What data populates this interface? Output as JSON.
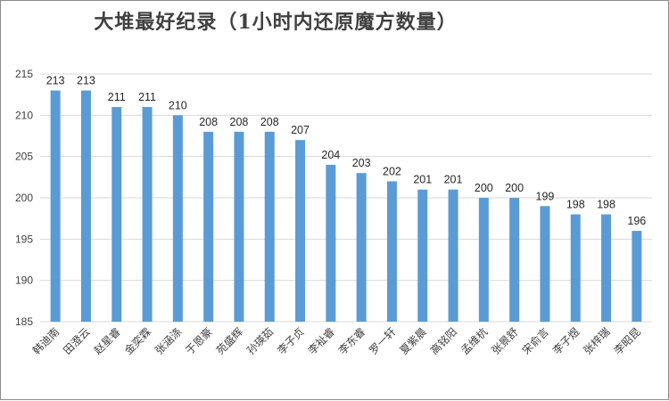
{
  "chart_data": {
    "type": "bar",
    "title": "大堆最好纪录（1小时内还原魔方数量）",
    "xlabel": "",
    "ylabel": "",
    "ylim": [
      185,
      215
    ],
    "yticks": [
      185,
      190,
      195,
      200,
      205,
      210,
      215
    ],
    "grid": true,
    "legend": "none",
    "bar_color": "#5b9bd5",
    "categories": [
      "韩迪南",
      "田澄云",
      "赵星睿",
      "金奕霖",
      "张涵涤",
      "于恩豪",
      "苑盛辉",
      "孙瑛茹",
      "李子贞",
      "李祉睿",
      "李东睿",
      "罗一轩",
      "夏紫晨",
      "高铭阳",
      "孟维杭",
      "张景舒",
      "宋俞言",
      "李子煜",
      "张梓瑞",
      "李昭昆"
    ],
    "values": [
      213,
      213,
      211,
      211,
      210,
      208,
      208,
      208,
      207,
      204,
      203,
      202,
      201,
      201,
      200,
      200,
      199,
      198,
      198,
      196
    ]
  }
}
